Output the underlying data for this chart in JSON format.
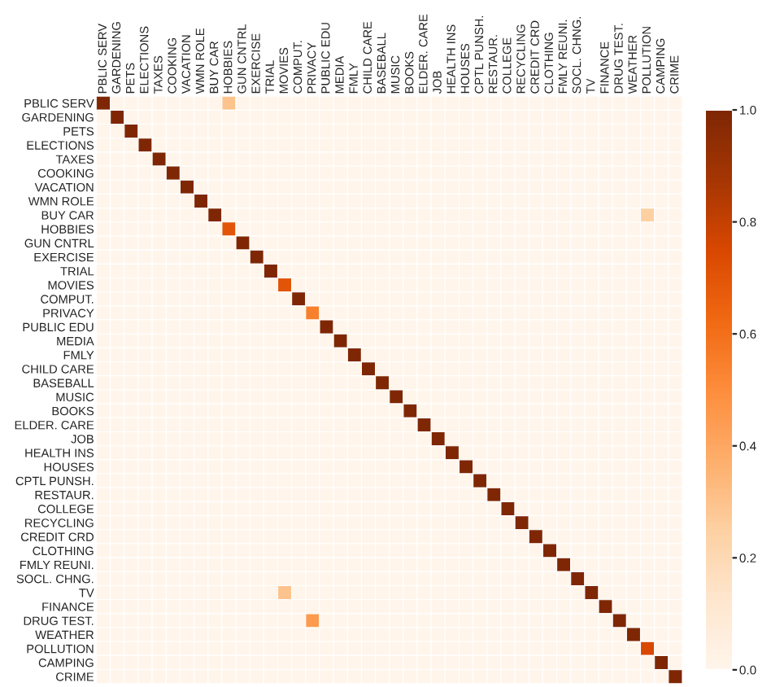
{
  "chart_data": {
    "type": "heatmap",
    "categories": [
      "PBLIC SERV",
      "GARDENING",
      "PETS",
      "ELECTIONS",
      "TAXES",
      "COOKING",
      "VACATION",
      "WMN ROLE",
      "BUY CAR",
      "HOBBIES",
      "GUN CNTRL",
      "EXERCISE",
      "TRIAL",
      "MOVIES",
      "COMPUT.",
      "PRIVACY",
      "PUBLIC EDU",
      "MEDIA",
      "FMLY",
      "CHILD CARE",
      "BASEBALL",
      "MUSIC",
      "BOOKS",
      "ELDER. CARE",
      "JOB",
      "HEALTH INS",
      "HOUSES",
      "CPTL PUNSH.",
      "RESTAUR.",
      "COLLEGE",
      "RECYCLING",
      "CREDIT CRD",
      "CLOTHING",
      "FMLY REUNI.",
      "SOCL. CHNG.",
      "TV",
      "FINANCE",
      "DRUG TEST.",
      "WEATHER",
      "POLLUTION",
      "CAMPING",
      "CRIME"
    ],
    "y_categories": [
      "PBLIC SERV",
      "GARDENING",
      "PETS",
      "ELECTIONS",
      "TAXES",
      "COOKING",
      "VACATION",
      "WMN ROLE",
      "BUY CAR",
      "HOBBIES",
      "GUN CNTRL",
      "EXERCISE",
      "TRIAL",
      "MOVIES",
      "COMPUT.",
      "PRIVACY",
      "PUBLIC EDU",
      "MEDIA",
      "FMLY",
      "CHILD CARE",
      "BASEBALL",
      "MUSIC",
      "BOOKS",
      "ELDER. CARE",
      "JOB",
      "HEALTH INS",
      "HOUSES",
      "CPTL PUNSH.",
      "RESTAUR.",
      "COLLEGE",
      "RECYCLING",
      "CREDIT CRD",
      "CLOTHING",
      "FMLY REUNI.",
      "SOCL. CHNG.",
      "TV",
      "FINANCE",
      "DRUG TEST.",
      "WEATHER",
      "POLLUTION",
      "CAMPING",
      "CRIME"
    ],
    "cells": [
      [
        1,
        0,
        0,
        0,
        0,
        0,
        0,
        0,
        0,
        0.3,
        0,
        0,
        0,
        0,
        0,
        0,
        0,
        0,
        0,
        0,
        0,
        0,
        0,
        0,
        0,
        0,
        0,
        0,
        0,
        0,
        0,
        0,
        0,
        0,
        0,
        0,
        0,
        0,
        0,
        0,
        0,
        0
      ],
      [
        0,
        1,
        0,
        0,
        0,
        0,
        0,
        0,
        0,
        0,
        0,
        0,
        0,
        0,
        0,
        0,
        0,
        0,
        0,
        0,
        0,
        0,
        0,
        0,
        0,
        0,
        0,
        0,
        0,
        0,
        0,
        0,
        0,
        0,
        0,
        0,
        0,
        0,
        0,
        0,
        0,
        0
      ],
      [
        0,
        0,
        1,
        0,
        0,
        0,
        0,
        0,
        0,
        0,
        0,
        0,
        0,
        0,
        0,
        0,
        0,
        0,
        0,
        0,
        0,
        0,
        0,
        0,
        0,
        0,
        0,
        0,
        0,
        0,
        0,
        0,
        0,
        0,
        0,
        0,
        0,
        0,
        0,
        0,
        0,
        0
      ],
      [
        0,
        0,
        0,
        1,
        0,
        0,
        0,
        0,
        0,
        0,
        0,
        0,
        0,
        0,
        0,
        0,
        0,
        0,
        0,
        0,
        0,
        0,
        0,
        0,
        0,
        0,
        0,
        0,
        0,
        0,
        0,
        0,
        0,
        0,
        0,
        0,
        0,
        0,
        0,
        0,
        0,
        0
      ],
      [
        0,
        0,
        0,
        0,
        1,
        0,
        0,
        0,
        0,
        0,
        0,
        0,
        0,
        0,
        0,
        0,
        0,
        0,
        0,
        0,
        0,
        0,
        0,
        0,
        0,
        0,
        0,
        0,
        0,
        0,
        0,
        0,
        0,
        0,
        0,
        0,
        0,
        0,
        0,
        0,
        0,
        0
      ],
      [
        0,
        0,
        0,
        0,
        0,
        1,
        0,
        0,
        0,
        0,
        0,
        0,
        0,
        0,
        0,
        0,
        0,
        0,
        0,
        0,
        0,
        0,
        0,
        0,
        0,
        0,
        0,
        0,
        0,
        0,
        0,
        0,
        0,
        0,
        0,
        0,
        0,
        0,
        0,
        0,
        0,
        0
      ],
      [
        0,
        0,
        0,
        0,
        0,
        0,
        1,
        0,
        0,
        0,
        0,
        0,
        0,
        0,
        0,
        0,
        0,
        0,
        0,
        0,
        0,
        0,
        0,
        0,
        0,
        0,
        0,
        0,
        0,
        0,
        0,
        0,
        0,
        0,
        0,
        0,
        0,
        0,
        0,
        0,
        0,
        0
      ],
      [
        0,
        0,
        0,
        0,
        0,
        0,
        0,
        1,
        0,
        0,
        0,
        0,
        0,
        0,
        0,
        0,
        0,
        0,
        0,
        0,
        0,
        0,
        0,
        0,
        0,
        0,
        0,
        0,
        0,
        0,
        0,
        0,
        0,
        0,
        0,
        0,
        0,
        0,
        0,
        0,
        0,
        0
      ],
      [
        0,
        0,
        0,
        0,
        0,
        0,
        0,
        0,
        1,
        0,
        0,
        0,
        0,
        0,
        0,
        0,
        0,
        0,
        0,
        0,
        0,
        0,
        0,
        0,
        0,
        0,
        0,
        0,
        0,
        0,
        0,
        0,
        0,
        0,
        0,
        0,
        0,
        0,
        0,
        0.25,
        0,
        0
      ],
      [
        0,
        0,
        0,
        0,
        0,
        0,
        0,
        0,
        0,
        0.7,
        0,
        0,
        0,
        0,
        0,
        0,
        0,
        0,
        0,
        0,
        0,
        0,
        0,
        0,
        0,
        0,
        0,
        0,
        0,
        0,
        0,
        0,
        0,
        0,
        0,
        0,
        0,
        0,
        0,
        0,
        0,
        0
      ],
      [
        0,
        0,
        0,
        0,
        0,
        0,
        0,
        0,
        0,
        0,
        1,
        0,
        0,
        0,
        0,
        0,
        0,
        0,
        0,
        0,
        0,
        0,
        0,
        0,
        0,
        0,
        0,
        0,
        0,
        0,
        0,
        0,
        0,
        0,
        0,
        0,
        0,
        0,
        0,
        0,
        0,
        0
      ],
      [
        0,
        0,
        0,
        0,
        0,
        0,
        0,
        0,
        0,
        0,
        0,
        1,
        0,
        0,
        0,
        0,
        0,
        0,
        0,
        0,
        0,
        0,
        0,
        0,
        0,
        0,
        0,
        0,
        0,
        0,
        0,
        0,
        0,
        0,
        0,
        0,
        0,
        0,
        0,
        0,
        0,
        0
      ],
      [
        0,
        0,
        0,
        0,
        0,
        0,
        0,
        0,
        0,
        0,
        0,
        0,
        1,
        0,
        0,
        0,
        0,
        0,
        0,
        0,
        0,
        0,
        0,
        0,
        0,
        0,
        0,
        0,
        0,
        0,
        0,
        0,
        0,
        0,
        0,
        0,
        0,
        0,
        0,
        0,
        0,
        0
      ],
      [
        0,
        0,
        0,
        0,
        0,
        0,
        0,
        0,
        0,
        0,
        0,
        0,
        0,
        0.7,
        0,
        0,
        0,
        0,
        0,
        0,
        0,
        0,
        0,
        0,
        0,
        0,
        0,
        0,
        0,
        0,
        0,
        0,
        0,
        0,
        0,
        0,
        0,
        0,
        0,
        0,
        0,
        0
      ],
      [
        0,
        0,
        0,
        0,
        0,
        0,
        0,
        0,
        0,
        0,
        0,
        0,
        0,
        0,
        1,
        0,
        0,
        0,
        0,
        0,
        0,
        0,
        0,
        0,
        0,
        0,
        0,
        0,
        0,
        0,
        0,
        0,
        0,
        0,
        0,
        0,
        0,
        0,
        0,
        0,
        0,
        0
      ],
      [
        0,
        0,
        0,
        0,
        0,
        0,
        0,
        0,
        0,
        0,
        0,
        0,
        0,
        0,
        0,
        0.55,
        0,
        0,
        0,
        0,
        0,
        0,
        0,
        0,
        0,
        0,
        0,
        0,
        0,
        0,
        0,
        0,
        0,
        0,
        0,
        0,
        0,
        0,
        0,
        0,
        0,
        0
      ],
      [
        0,
        0,
        0,
        0,
        0,
        0,
        0,
        0,
        0,
        0,
        0,
        0,
        0,
        0,
        0,
        0,
        1,
        0,
        0,
        0,
        0,
        0,
        0,
        0,
        0,
        0,
        0,
        0,
        0,
        0,
        0,
        0,
        0,
        0,
        0,
        0,
        0,
        0,
        0,
        0,
        0,
        0
      ],
      [
        0,
        0,
        0,
        0,
        0,
        0,
        0,
        0,
        0,
        0,
        0,
        0,
        0,
        0,
        0,
        0,
        0,
        1,
        0,
        0,
        0,
        0,
        0,
        0,
        0,
        0,
        0,
        0,
        0,
        0,
        0,
        0,
        0,
        0,
        0,
        0,
        0,
        0,
        0,
        0,
        0,
        0
      ],
      [
        0,
        0,
        0,
        0,
        0,
        0,
        0,
        0,
        0,
        0,
        0,
        0,
        0,
        0,
        0,
        0,
        0,
        0,
        1,
        0,
        0,
        0,
        0,
        0,
        0,
        0,
        0,
        0,
        0,
        0,
        0,
        0,
        0,
        0,
        0,
        0,
        0,
        0,
        0,
        0,
        0,
        0
      ],
      [
        0,
        0,
        0,
        0,
        0,
        0,
        0,
        0,
        0,
        0,
        0,
        0,
        0,
        0,
        0,
        0,
        0,
        0,
        0,
        1,
        0,
        0,
        0,
        0,
        0,
        0,
        0,
        0,
        0,
        0,
        0,
        0,
        0,
        0,
        0,
        0,
        0,
        0,
        0,
        0,
        0,
        0
      ],
      [
        0,
        0,
        0,
        0,
        0,
        0,
        0,
        0,
        0,
        0,
        0,
        0,
        0,
        0,
        0,
        0,
        0,
        0,
        0,
        0,
        1,
        0,
        0,
        0,
        0,
        0,
        0,
        0,
        0,
        0,
        0,
        0,
        0,
        0,
        0,
        0,
        0,
        0,
        0,
        0,
        0,
        0
      ],
      [
        0,
        0,
        0,
        0,
        0,
        0,
        0,
        0,
        0,
        0,
        0,
        0,
        0,
        0,
        0,
        0,
        0,
        0,
        0,
        0,
        0,
        1,
        0,
        0,
        0,
        0,
        0,
        0,
        0,
        0,
        0,
        0,
        0,
        0,
        0,
        0,
        0,
        0,
        0,
        0,
        0,
        0
      ],
      [
        0,
        0,
        0,
        0,
        0,
        0,
        0,
        0,
        0,
        0,
        0,
        0,
        0,
        0,
        0,
        0,
        0,
        0,
        0,
        0,
        0,
        0,
        1,
        0,
        0,
        0,
        0,
        0,
        0,
        0,
        0,
        0,
        0,
        0,
        0,
        0,
        0,
        0,
        0,
        0,
        0,
        0
      ],
      [
        0,
        0,
        0,
        0,
        0,
        0,
        0,
        0,
        0,
        0,
        0,
        0,
        0,
        0,
        0,
        0,
        0,
        0,
        0,
        0,
        0,
        0,
        0,
        1,
        0,
        0,
        0,
        0,
        0,
        0,
        0,
        0,
        0,
        0,
        0,
        0,
        0,
        0,
        0,
        0,
        0,
        0
      ],
      [
        0,
        0,
        0,
        0,
        0,
        0,
        0,
        0,
        0,
        0,
        0,
        0,
        0,
        0,
        0,
        0,
        0,
        0,
        0,
        0,
        0,
        0,
        0,
        0,
        1,
        0,
        0,
        0,
        0,
        0,
        0,
        0,
        0,
        0,
        0,
        0,
        0,
        0,
        0,
        0,
        0,
        0
      ],
      [
        0,
        0,
        0,
        0,
        0,
        0,
        0,
        0,
        0,
        0,
        0,
        0,
        0,
        0,
        0,
        0,
        0,
        0,
        0,
        0,
        0,
        0,
        0,
        0,
        0,
        1,
        0,
        0,
        0,
        0,
        0,
        0,
        0,
        0,
        0,
        0,
        0,
        0,
        0,
        0,
        0,
        0
      ],
      [
        0,
        0,
        0,
        0,
        0,
        0,
        0,
        0,
        0,
        0,
        0,
        0,
        0,
        0,
        0,
        0,
        0,
        0,
        0,
        0,
        0,
        0,
        0,
        0,
        0,
        0,
        1,
        0,
        0,
        0,
        0,
        0,
        0,
        0,
        0,
        0,
        0,
        0,
        0,
        0,
        0,
        0
      ],
      [
        0,
        0,
        0,
        0,
        0,
        0,
        0,
        0,
        0,
        0,
        0,
        0,
        0,
        0,
        0,
        0,
        0,
        0,
        0,
        0,
        0,
        0,
        0,
        0,
        0,
        0,
        0,
        1,
        0,
        0,
        0,
        0,
        0,
        0,
        0,
        0,
        0,
        0,
        0,
        0,
        0,
        0
      ],
      [
        0,
        0,
        0,
        0,
        0,
        0,
        0,
        0,
        0,
        0,
        0,
        0,
        0,
        0,
        0,
        0,
        0,
        0,
        0,
        0,
        0,
        0,
        0,
        0,
        0,
        0,
        0,
        0,
        1,
        0,
        0,
        0,
        0,
        0,
        0,
        0,
        0,
        0,
        0,
        0,
        0,
        0
      ],
      [
        0,
        0,
        0,
        0,
        0,
        0,
        0,
        0,
        0,
        0,
        0,
        0,
        0,
        0,
        0,
        0,
        0,
        0,
        0,
        0,
        0,
        0,
        0,
        0,
        0,
        0,
        0,
        0,
        0,
        1,
        0,
        0,
        0,
        0,
        0,
        0,
        0,
        0,
        0,
        0,
        0,
        0
      ],
      [
        0,
        0,
        0,
        0,
        0,
        0,
        0,
        0,
        0,
        0,
        0,
        0,
        0,
        0,
        0,
        0,
        0,
        0,
        0,
        0,
        0,
        0,
        0,
        0,
        0,
        0,
        0,
        0,
        0,
        0,
        1,
        0,
        0,
        0,
        0,
        0,
        0,
        0,
        0,
        0,
        0,
        0
      ],
      [
        0,
        0,
        0,
        0,
        0,
        0,
        0,
        0,
        0,
        0,
        0,
        0,
        0,
        0,
        0,
        0,
        0,
        0,
        0,
        0,
        0,
        0,
        0,
        0,
        0,
        0,
        0,
        0,
        0,
        0,
        0,
        1,
        0,
        0,
        0,
        0,
        0,
        0,
        0,
        0,
        0,
        0
      ],
      [
        0,
        0,
        0,
        0,
        0,
        0,
        0,
        0,
        0,
        0,
        0,
        0,
        0,
        0,
        0,
        0,
        0,
        0,
        0,
        0,
        0,
        0,
        0,
        0,
        0,
        0,
        0,
        0,
        0,
        0,
        0,
        0,
        1,
        0,
        0,
        0,
        0,
        0,
        0,
        0,
        0,
        0
      ],
      [
        0,
        0,
        0,
        0,
        0,
        0,
        0,
        0,
        0,
        0,
        0,
        0,
        0,
        0,
        0,
        0,
        0,
        0,
        0,
        0,
        0,
        0,
        0,
        0,
        0,
        0,
        0,
        0,
        0,
        0,
        0,
        0,
        0,
        1,
        0,
        0,
        0,
        0,
        0,
        0,
        0,
        0
      ],
      [
        0,
        0,
        0,
        0,
        0,
        0,
        0,
        0,
        0,
        0,
        0,
        0,
        0,
        0,
        0,
        0,
        0,
        0,
        0,
        0,
        0,
        0,
        0,
        0,
        0,
        0,
        0,
        0,
        0,
        0,
        0,
        0,
        0,
        0,
        1,
        0,
        0,
        0,
        0,
        0,
        0,
        0
      ],
      [
        0,
        0,
        0,
        0,
        0,
        0,
        0,
        0,
        0,
        0,
        0,
        0,
        0,
        0.3,
        0,
        0,
        0,
        0,
        0,
        0,
        0,
        0,
        0,
        0,
        0,
        0,
        0,
        0,
        0,
        0,
        0,
        0,
        0,
        0,
        0,
        1,
        0,
        0,
        0,
        0,
        0,
        0
      ],
      [
        0,
        0,
        0,
        0,
        0,
        0,
        0,
        0,
        0,
        0,
        0,
        0,
        0,
        0,
        0,
        0,
        0,
        0,
        0,
        0,
        0,
        0,
        0,
        0,
        0,
        0,
        0,
        0,
        0,
        0,
        0,
        0,
        0,
        0,
        0,
        0,
        1,
        0,
        0,
        0,
        0,
        0
      ],
      [
        0,
        0,
        0,
        0,
        0,
        0,
        0,
        0,
        0,
        0,
        0,
        0,
        0,
        0,
        0,
        0.45,
        0,
        0,
        0,
        0,
        0,
        0,
        0,
        0,
        0,
        0,
        0,
        0,
        0,
        0,
        0,
        0,
        0,
        0,
        0,
        0,
        0,
        1,
        0,
        0,
        0,
        0
      ],
      [
        0,
        0,
        0,
        0,
        0,
        0,
        0,
        0,
        0,
        0,
        0,
        0,
        0,
        0,
        0,
        0,
        0,
        0,
        0,
        0,
        0,
        0,
        0,
        0,
        0,
        0,
        0,
        0,
        0,
        0,
        0,
        0,
        0,
        0,
        0,
        0,
        0,
        0,
        1,
        0,
        0,
        0
      ],
      [
        0,
        0,
        0,
        0,
        0,
        0,
        0,
        0,
        0,
        0,
        0,
        0,
        0,
        0,
        0,
        0,
        0,
        0,
        0,
        0,
        0,
        0,
        0,
        0,
        0,
        0,
        0,
        0,
        0,
        0,
        0,
        0,
        0,
        0,
        0,
        0,
        0,
        0,
        0,
        0.75,
        0,
        0
      ],
      [
        0,
        0,
        0,
        0,
        0,
        0,
        0,
        0,
        0,
        0,
        0,
        0,
        0,
        0,
        0,
        0,
        0,
        0,
        0,
        0,
        0,
        0,
        0,
        0,
        0,
        0,
        0,
        0,
        0,
        0,
        0,
        0,
        0,
        0,
        0,
        0,
        0,
        0,
        0,
        0,
        1,
        0
      ],
      [
        0,
        0,
        0,
        0,
        0,
        0,
        0,
        0,
        0,
        0,
        0,
        0,
        0,
        0,
        0,
        0,
        0,
        0,
        0,
        0,
        0,
        0,
        0,
        0,
        0,
        0,
        0,
        0,
        0,
        0,
        0,
        0,
        0,
        0,
        0,
        0,
        0,
        0,
        0,
        0,
        0,
        1
      ]
    ],
    "clim": [
      0,
      1
    ],
    "cticks": [
      {
        "value": 0,
        "label": "0.0"
      },
      {
        "value": 0.2,
        "label": "0.2"
      },
      {
        "value": 0.4,
        "label": "0.4"
      },
      {
        "value": 0.6,
        "label": "0.6"
      },
      {
        "value": 0.8,
        "label": "0.8"
      },
      {
        "value": 1,
        "label": "1.0"
      }
    ]
  }
}
